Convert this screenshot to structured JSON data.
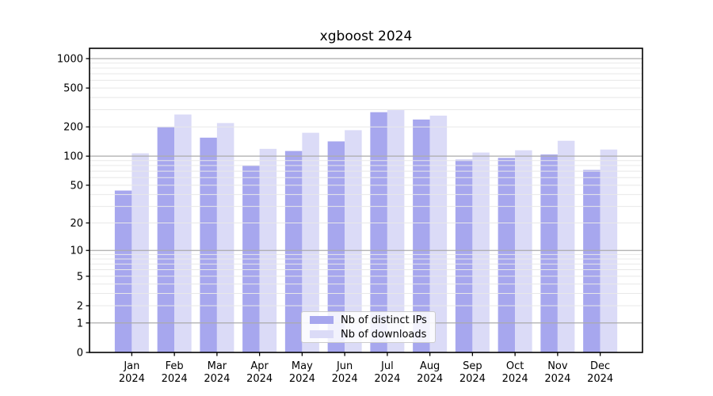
{
  "chart_data": {
    "type": "bar",
    "title": "xgboost 2024",
    "categories": [
      "Jan 2024",
      "Feb 2024",
      "Mar 2024",
      "Apr 2024",
      "May 2024",
      "Jun 2024",
      "Jul 2024",
      "Aug 2024",
      "Sep 2024",
      "Oct 2024",
      "Nov 2024",
      "Dec 2024"
    ],
    "x_tick_top": [
      "Jan",
      "Feb",
      "Mar",
      "Apr",
      "May",
      "Jun",
      "Jul",
      "Aug",
      "Sep",
      "Oct",
      "Nov",
      "Dec"
    ],
    "x_tick_bottom": "2024",
    "series": [
      {
        "name": "Nb of distinct IPs",
        "color": "#a7a7ee",
        "values": [
          44,
          200,
          155,
          80,
          113,
          142,
          283,
          238,
          92,
          96,
          104,
          72
        ]
      },
      {
        "name": "Nb of downloads",
        "color": "#dbdbf7",
        "values": [
          107,
          268,
          219,
          119,
          174,
          185,
          297,
          261,
          109,
          115,
          144,
          117
        ]
      }
    ],
    "xlabel": "",
    "ylabel": "",
    "yscale": "log1p",
    "ylim": [
      0,
      1274
    ],
    "y_ticks": [
      0,
      1,
      2,
      5,
      10,
      20,
      50,
      100,
      200,
      500,
      1000
    ],
    "y_major_gridlines": [
      1,
      10,
      100,
      1000
    ],
    "y_minor_gridlines": [
      2,
      3,
      4,
      5,
      6,
      7,
      8,
      9,
      20,
      30,
      40,
      50,
      60,
      70,
      80,
      90,
      200,
      300,
      400,
      500,
      600,
      700,
      800,
      900
    ],
    "grid": true,
    "legend_position": "lower center"
  },
  "colors": {
    "grid_major": "#ababab",
    "grid_minor": "#e8e8e8",
    "axis": "#000000",
    "background": "#ffffff",
    "legend_border": "#cccccc"
  }
}
